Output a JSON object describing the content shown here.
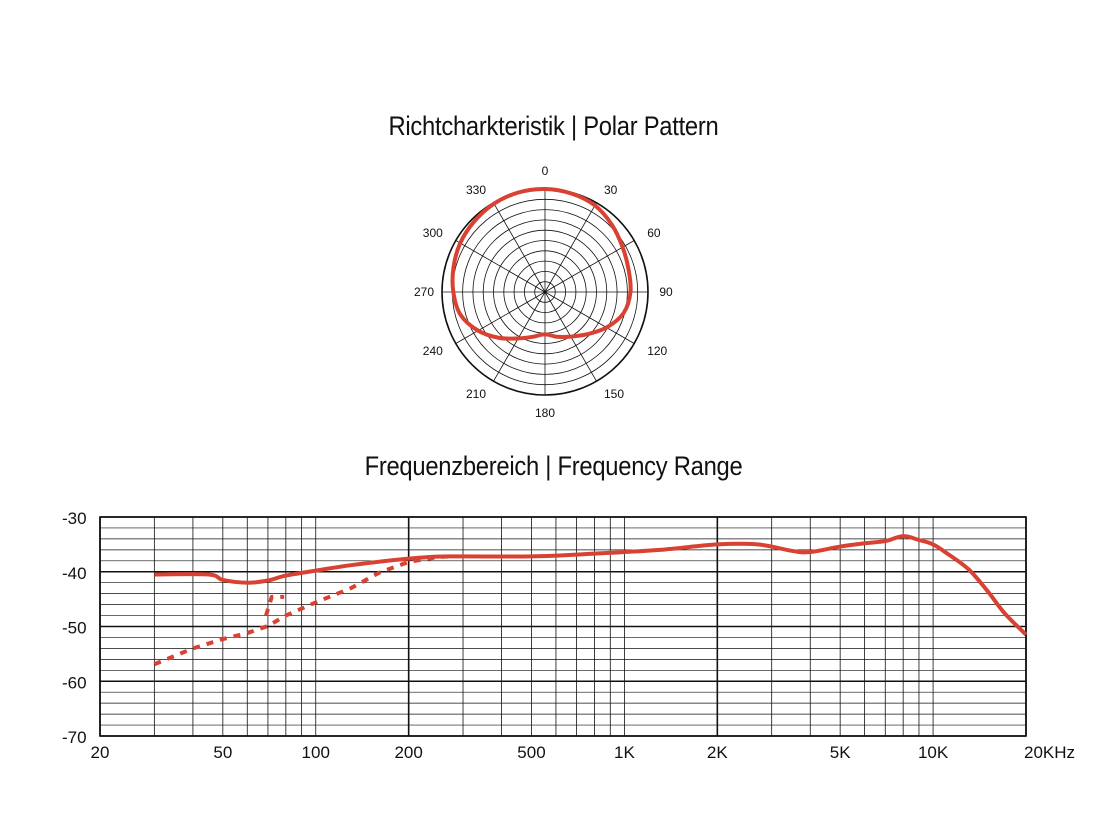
{
  "titles": {
    "polar": "Richtcharkteristik | Polar Pattern",
    "frequency": "Frequenzbereich | Frequency Range"
  },
  "colors": {
    "curve": "#d94232",
    "grid": "#111111"
  },
  "chart_data": [
    {
      "type": "polar",
      "title": "Richtcharkteristik | Polar Pattern",
      "angle_labels": [
        "0",
        "30",
        "60",
        "90",
        "120",
        "150",
        "180",
        "210",
        "240",
        "270",
        "300",
        "330"
      ],
      "rings": 10,
      "spokes_deg": 30,
      "series": [
        {
          "style": "solid",
          "points": [
            {
              "angle": 0,
              "r": 1.0
            },
            {
              "angle": 15,
              "r": 0.99
            },
            {
              "angle": 30,
              "r": 0.97
            },
            {
              "angle": 45,
              "r": 0.92
            },
            {
              "angle": 60,
              "r": 0.87
            },
            {
              "angle": 75,
              "r": 0.84
            },
            {
              "angle": 90,
              "r": 0.83
            },
            {
              "angle": 105,
              "r": 0.79
            },
            {
              "angle": 120,
              "r": 0.69
            },
            {
              "angle": 135,
              "r": 0.58
            },
            {
              "angle": 150,
              "r": 0.5
            },
            {
              "angle": 165,
              "r": 0.45
            },
            {
              "angle": 180,
              "r": 0.41
            },
            {
              "angle": 195,
              "r": 0.45
            },
            {
              "angle": 210,
              "r": 0.52
            },
            {
              "angle": 225,
              "r": 0.63
            },
            {
              "angle": 240,
              "r": 0.75
            },
            {
              "angle": 255,
              "r": 0.85
            },
            {
              "angle": 270,
              "r": 0.89
            },
            {
              "angle": 285,
              "r": 0.92
            },
            {
              "angle": 300,
              "r": 0.95
            },
            {
              "angle": 315,
              "r": 0.97
            },
            {
              "angle": 330,
              "r": 0.99
            },
            {
              "angle": 345,
              "r": 1.0
            }
          ]
        }
      ]
    },
    {
      "type": "line",
      "title": "Frequenzbereich | Frequency Range",
      "xscale": "log",
      "xlim": [
        20,
        20000
      ],
      "ylim": [
        -70,
        -30
      ],
      "x_ticks": [
        {
          "value": 20,
          "label": "20"
        },
        {
          "value": 50,
          "label": "50"
        },
        {
          "value": 100,
          "label": "100"
        },
        {
          "value": 200,
          "label": "200"
        },
        {
          "value": 500,
          "label": "500"
        },
        {
          "value": 1000,
          "label": "1K"
        },
        {
          "value": 2000,
          "label": "2K"
        },
        {
          "value": 5000,
          "label": "5K"
        },
        {
          "value": 10000,
          "label": "10K"
        },
        {
          "value": 20000,
          "label": "20KHz"
        }
      ],
      "y_ticks": [
        {
          "value": -30,
          "label": "-30"
        },
        {
          "value": -40,
          "label": "-40"
        },
        {
          "value": -50,
          "label": "-50"
        },
        {
          "value": -60,
          "label": "-60"
        },
        {
          "value": -70,
          "label": "-70"
        }
      ],
      "grid": true,
      "series": [
        {
          "style": "solid",
          "x": [
            30,
            45,
            50,
            60,
            70,
            80,
            100,
            130,
            200,
            270,
            500,
            800,
            1300,
            2000,
            2700,
            3500,
            4000,
            5000,
            6000,
            7000,
            8000,
            9000,
            10000,
            11000,
            13000,
            15000,
            17000,
            20000
          ],
          "y": [
            -40.5,
            -40.5,
            -41.5,
            -42.0,
            -41.6,
            -40.7,
            -39.8,
            -38.8,
            -37.6,
            -37.2,
            -37.2,
            -36.7,
            -36.0,
            -35.0,
            -35.0,
            -36.2,
            -36.4,
            -35.4,
            -34.8,
            -34.4,
            -33.5,
            -34.2,
            -35.0,
            -36.5,
            -39.5,
            -43.5,
            -47.5,
            -51.5
          ]
        },
        {
          "style": "dashed",
          "x": [
            30,
            40,
            50,
            60,
            70,
            80,
            100,
            130,
            160,
            200,
            250,
            270
          ],
          "y": [
            -56.9,
            -54.0,
            -52.3,
            -51.2,
            -49.9,
            -48.0,
            -45.6,
            -43.0,
            -40.2,
            -38.2,
            -37.3,
            -37.2
          ]
        },
        {
          "style": "dashed",
          "x": [
            69,
            72,
            79
          ],
          "y": [
            -48.0,
            -44.6,
            -44.6
          ]
        }
      ]
    }
  ]
}
